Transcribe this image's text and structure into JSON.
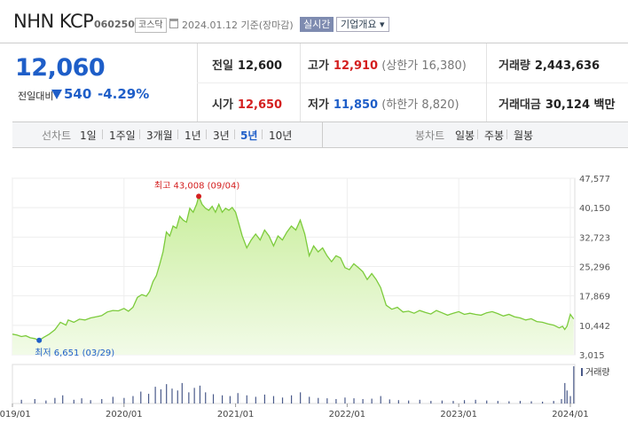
{
  "header": {
    "name": "NHN KCP",
    "code": "060250",
    "market_badge": "코스닥",
    "date_text": "2024.01.12  기준(장마감)",
    "realtime_button": "실시간",
    "company_info_button": "기업개요 ▾"
  },
  "quote": {
    "price": "12,060",
    "change_label": "전일대비",
    "change_value": "540",
    "change_pct": "-4.29%",
    "prev_close_label": "전일",
    "prev_close": "12,600",
    "high_label": "고가",
    "high": "12,910",
    "upper_limit": "(상한가 16,380)",
    "volume_label": "거래량",
    "volume": "2,443,636",
    "open_label": "시가",
    "open": "12,650",
    "low_label": "저가",
    "low": "11,850",
    "lower_limit": "(하한가 8,820)",
    "amount_label": "거래대금",
    "amount": "30,124 백만"
  },
  "tabs": {
    "line_label": "선차트",
    "periods": [
      "1일",
      "1주일",
      "3개월",
      "1년",
      "3년",
      "5년",
      "10년"
    ],
    "selected_period": "5년",
    "candle_label": "봉차트",
    "candles": [
      "일봉",
      "주봉",
      "월봉"
    ]
  },
  "colors": {
    "up": "#d42020",
    "down": "#1e5ec8",
    "line": "#7ccb3c",
    "area_top": "#c9ee9c",
    "area_bottom": "#f2fbe8",
    "volume_bar": "#4a5a8a"
  },
  "chart_data": {
    "type": "area",
    "ylim": [
      3015,
      47577
    ],
    "yticks": [
      "47,577",
      "40,150",
      "32,723",
      "25,296",
      "17,869",
      "10,442",
      "3,015"
    ],
    "ytick_values": [
      47577,
      40150,
      32723,
      25296,
      17869,
      10442,
      3015
    ],
    "xticks": [
      "2019/01",
      "2020/01",
      "2021/01",
      "2022/01",
      "2023/01",
      "2024/01"
    ],
    "xtick_values": [
      2019.0,
      2020.0,
      2021.0,
      2022.0,
      2023.0,
      2024.0
    ],
    "xlim": [
      2019.0,
      2024.04
    ],
    "max_annotation": "최고 43,008 (09/04)",
    "min_annotation": "최저 6,651 (03/29)",
    "max_point": [
      2020.67,
      43008
    ],
    "min_point": [
      2019.24,
      6651
    ],
    "volume_label": "거래량",
    "series": [
      {
        "x": [
          2019.0,
          2019.04,
          2019.08,
          2019.12,
          2019.16,
          2019.2,
          2019.24,
          2019.28,
          2019.33,
          2019.38,
          2019.43,
          2019.48,
          2019.5,
          2019.55,
          2019.6,
          2019.65,
          2019.7,
          2019.75,
          2019.8,
          2019.85,
          2019.9,
          2019.95,
          2020.0,
          2020.04,
          2020.08,
          2020.12,
          2020.16,
          2020.2,
          2020.23,
          2020.26,
          2020.29,
          2020.32,
          2020.35,
          2020.38,
          2020.41,
          2020.44,
          2020.47,
          2020.5,
          2020.53,
          2020.56,
          2020.59,
          2020.62,
          2020.65,
          2020.67,
          2020.7,
          2020.73,
          2020.76,
          2020.79,
          2020.82,
          2020.85,
          2020.88,
          2020.91,
          2020.94,
          2020.97,
          2021.0,
          2021.03,
          2021.06,
          2021.1,
          2021.14,
          2021.18,
          2021.22,
          2021.26,
          2021.3,
          2021.34,
          2021.38,
          2021.42,
          2021.46,
          2021.5,
          2021.54,
          2021.58,
          2021.62,
          2021.66,
          2021.7,
          2021.74,
          2021.78,
          2021.82,
          2021.86,
          2021.9,
          2021.94,
          2021.98,
          2022.02,
          2022.06,
          2022.1,
          2022.14,
          2022.18,
          2022.22,
          2022.26,
          2022.3,
          2022.35,
          2022.4,
          2022.45,
          2022.5,
          2022.55,
          2022.6,
          2022.65,
          2022.7,
          2022.75,
          2022.8,
          2022.85,
          2022.9,
          2022.95,
          2023.0,
          2023.05,
          2023.1,
          2023.15,
          2023.2,
          2023.25,
          2023.3,
          2023.35,
          2023.4,
          2023.45,
          2023.5,
          2023.55,
          2023.6,
          2023.65,
          2023.7,
          2023.75,
          2023.8,
          2023.85,
          2023.9,
          2023.93,
          2023.95,
          2023.97,
          2024.0,
          2024.03
        ],
        "y": [
          8200,
          8000,
          7600,
          7800,
          7300,
          7100,
          6651,
          7400,
          8200,
          9300,
          11200,
          10500,
          11800,
          11200,
          12000,
          11800,
          12300,
          12600,
          12900,
          13800,
          14200,
          14100,
          14700,
          14000,
          15000,
          17500,
          18200,
          17800,
          19000,
          21500,
          23000,
          25800,
          29000,
          34000,
          33000,
          35500,
          35000,
          38000,
          37000,
          36500,
          40000,
          39000,
          41000,
          43008,
          41000,
          40000,
          39500,
          40500,
          39000,
          41000,
          39000,
          40000,
          39500,
          40200,
          39000,
          36000,
          33000,
          30000,
          32000,
          33500,
          32000,
          34500,
          33000,
          30500,
          33000,
          32000,
          34000,
          35500,
          34500,
          37000,
          33500,
          28000,
          30500,
          29000,
          30000,
          28000,
          26500,
          28000,
          27500,
          25000,
          24500,
          26000,
          25000,
          24000,
          22000,
          23500,
          22000,
          20000,
          15500,
          14500,
          15000,
          13800,
          14000,
          13500,
          14200,
          13700,
          13300,
          14200,
          13600,
          13000,
          13500,
          13900,
          13200,
          13500,
          13200,
          13000,
          13600,
          13900,
          13400,
          12800,
          13200,
          12600,
          12300,
          11800,
          12100,
          11400,
          11200,
          10800,
          10500,
          9800,
          10200,
          9400,
          10200,
          13200,
          12060
        ]
      }
    ],
    "volume": [
      {
        "x": 2019.08,
        "v": 0.1
      },
      {
        "x": 2019.2,
        "v": 0.12
      },
      {
        "x": 2019.3,
        "v": 0.08
      },
      {
        "x": 2019.38,
        "v": 0.15
      },
      {
        "x": 2019.45,
        "v": 0.22
      },
      {
        "x": 2019.55,
        "v": 0.1
      },
      {
        "x": 2019.62,
        "v": 0.14
      },
      {
        "x": 2019.7,
        "v": 0.09
      },
      {
        "x": 2019.8,
        "v": 0.12
      },
      {
        "x": 2019.9,
        "v": 0.18
      },
      {
        "x": 2020.0,
        "v": 0.15
      },
      {
        "x": 2020.08,
        "v": 0.2
      },
      {
        "x": 2020.15,
        "v": 0.32
      },
      {
        "x": 2020.22,
        "v": 0.26
      },
      {
        "x": 2020.28,
        "v": 0.45
      },
      {
        "x": 2020.33,
        "v": 0.38
      },
      {
        "x": 2020.38,
        "v": 0.52
      },
      {
        "x": 2020.43,
        "v": 0.4
      },
      {
        "x": 2020.48,
        "v": 0.35
      },
      {
        "x": 2020.52,
        "v": 0.55
      },
      {
        "x": 2020.58,
        "v": 0.3
      },
      {
        "x": 2020.63,
        "v": 0.42
      },
      {
        "x": 2020.68,
        "v": 0.48
      },
      {
        "x": 2020.73,
        "v": 0.3
      },
      {
        "x": 2020.8,
        "v": 0.25
      },
      {
        "x": 2020.88,
        "v": 0.22
      },
      {
        "x": 2020.95,
        "v": 0.2
      },
      {
        "x": 2021.02,
        "v": 0.28
      },
      {
        "x": 2021.1,
        "v": 0.22
      },
      {
        "x": 2021.18,
        "v": 0.18
      },
      {
        "x": 2021.26,
        "v": 0.24
      },
      {
        "x": 2021.34,
        "v": 0.2
      },
      {
        "x": 2021.42,
        "v": 0.16
      },
      {
        "x": 2021.5,
        "v": 0.22
      },
      {
        "x": 2021.58,
        "v": 0.3
      },
      {
        "x": 2021.66,
        "v": 0.18
      },
      {
        "x": 2021.74,
        "v": 0.15
      },
      {
        "x": 2021.82,
        "v": 0.14
      },
      {
        "x": 2021.9,
        "v": 0.12
      },
      {
        "x": 2021.98,
        "v": 0.16
      },
      {
        "x": 2022.06,
        "v": 0.14
      },
      {
        "x": 2022.14,
        "v": 0.12
      },
      {
        "x": 2022.22,
        "v": 0.13
      },
      {
        "x": 2022.3,
        "v": 0.2
      },
      {
        "x": 2022.38,
        "v": 0.11
      },
      {
        "x": 2022.46,
        "v": 0.09
      },
      {
        "x": 2022.55,
        "v": 0.08
      },
      {
        "x": 2022.65,
        "v": 0.1
      },
      {
        "x": 2022.75,
        "v": 0.07
      },
      {
        "x": 2022.85,
        "v": 0.08
      },
      {
        "x": 2022.95,
        "v": 0.07
      },
      {
        "x": 2023.05,
        "v": 0.09
      },
      {
        "x": 2023.15,
        "v": 0.1
      },
      {
        "x": 2023.25,
        "v": 0.08
      },
      {
        "x": 2023.35,
        "v": 0.07
      },
      {
        "x": 2023.45,
        "v": 0.06
      },
      {
        "x": 2023.55,
        "v": 0.07
      },
      {
        "x": 2023.65,
        "v": 0.06
      },
      {
        "x": 2023.75,
        "v": 0.05
      },
      {
        "x": 2023.85,
        "v": 0.07
      },
      {
        "x": 2023.92,
        "v": 0.12
      },
      {
        "x": 2023.95,
        "v": 0.55
      },
      {
        "x": 2023.97,
        "v": 0.35
      },
      {
        "x": 2024.0,
        "v": 0.2
      },
      {
        "x": 2024.03,
        "v": 1.0
      }
    ]
  }
}
